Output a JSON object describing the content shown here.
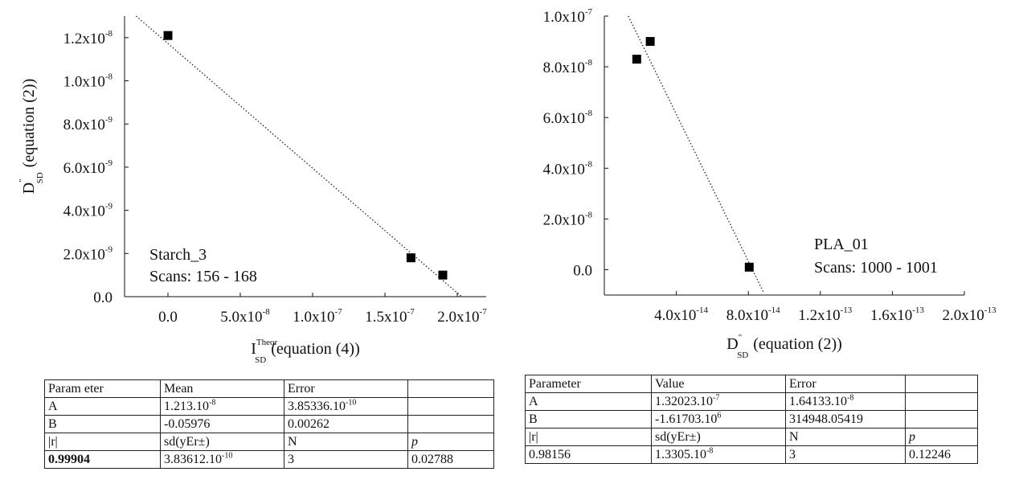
{
  "chart_data": [
    {
      "type": "scatter",
      "series": [
        {
          "x": [
            0,
            1.68e-07,
            1.9e-07
          ],
          "y": [
            1.21e-08,
            1.8e-09,
            1e-09
          ]
        }
      ],
      "fit_line": {
        "x": [
          -2.2e-08,
          2.03e-07
        ],
        "y": [
          1.3e-08,
          0
        ]
      },
      "xlim": [
        -3e-08,
        2.2e-07
      ],
      "ylim": [
        0,
        1.3e-08
      ],
      "x_ticks": [
        {
          "v": 0,
          "m": "0.0",
          "e": ""
        },
        {
          "v": 5e-08,
          "m": "5.0x10",
          "e": "-8"
        },
        {
          "v": 1e-07,
          "m": "1.0x10",
          "e": "-7"
        },
        {
          "v": 1.5e-07,
          "m": "1.5x10",
          "e": "-7"
        },
        {
          "v": 2e-07,
          "m": "2.0x10",
          "e": "-7"
        }
      ],
      "y_ticks": [
        {
          "v": 0,
          "m": "0.0",
          "e": ""
        },
        {
          "v": 2e-09,
          "m": "2.0x10",
          "e": "-9"
        },
        {
          "v": 4e-09,
          "m": "4.0x10",
          "e": "-9"
        },
        {
          "v": 6e-09,
          "m": "6.0x10",
          "e": "-9"
        },
        {
          "v": 8e-09,
          "m": "8.0x10",
          "e": "-9"
        },
        {
          "v": 1e-08,
          "m": "1.0x10",
          "e": "-8"
        },
        {
          "v": 1.2e-08,
          "m": "1.2x10",
          "e": "-8"
        }
      ],
      "xlabel": {
        "main": "I",
        "sup": "Theor",
        "sub": "SD",
        "rest": "(equation (4))"
      },
      "ylabel": {
        "main": "D",
        "sup": "\"",
        "sub": "SD",
        "rest": "(equation (2))"
      },
      "annotation": [
        "Starch_3",
        "Scans: 156 - 168"
      ]
    },
    {
      "type": "scatter",
      "series": [
        {
          "x": [
            1.8e-14,
            2.55e-14,
            8.05e-14
          ],
          "y": [
            8.3e-08,
            9e-08,
            1e-09
          ]
        }
      ],
      "fit_line": {
        "x": [
          1.33e-14,
          8.85e-14
        ],
        "y": [
          1e-07,
          -9e-09
        ]
      },
      "xlim": [
        0,
        2e-13
      ],
      "ylim": [
        -1e-08,
        1e-07
      ],
      "x_ticks": [
        {
          "v": 4e-14,
          "m": "4.0x10",
          "e": "-14"
        },
        {
          "v": 8e-14,
          "m": "8.0x10",
          "e": "-14"
        },
        {
          "v": 1.2e-13,
          "m": "1.2x10",
          "e": "-13"
        },
        {
          "v": 1.6e-13,
          "m": "1.6x10",
          "e": "-13"
        },
        {
          "v": 2e-13,
          "m": "2.0x10",
          "e": "-13"
        }
      ],
      "y_ticks": [
        {
          "v": 0,
          "m": "0.0",
          "e": ""
        },
        {
          "v": 2e-08,
          "m": "2.0x10",
          "e": "-8"
        },
        {
          "v": 4e-08,
          "m": "4.0x10",
          "e": "-8"
        },
        {
          "v": 6e-08,
          "m": "6.0x10",
          "e": "-8"
        },
        {
          "v": 8e-08,
          "m": "8.0x10",
          "e": "-8"
        },
        {
          "v": 1e-07,
          "m": "1.0x10",
          "e": "-7"
        }
      ],
      "xlabel": {
        "main": "D",
        "sup": "\"",
        "sub": "SD",
        "rest": "(equation (2))"
      },
      "annotation": [
        "PLA_01",
        "Scans: 1000 - 1001"
      ]
    }
  ],
  "tables": {
    "left": {
      "header": [
        "Param eter",
        "Mean",
        "Error",
        ""
      ],
      "rows": [
        {
          "c1": "A",
          "c2": {
            "m": "1.213.10",
            "e": "-8"
          },
          "c3": {
            "m": "3.85336.10",
            "e": "-10"
          },
          "c4": ""
        },
        {
          "c1": "B",
          "c2": {
            "m": "-0.05976",
            "e": ""
          },
          "c3": {
            "m": "0.00262",
            "e": ""
          },
          "c4": ""
        }
      ],
      "stats_header": [
        "|r|",
        "sd(yEr±)",
        "N",
        "p"
      ],
      "stats": {
        "c1": "0.99904",
        "c2": {
          "m": "3.83612.10",
          "e": "-10"
        },
        "c3": "3",
        "c4": "0.02788"
      }
    },
    "right": {
      "header": [
        "Parameter",
        "Value",
        "Error",
        ""
      ],
      "rows": [
        {
          "c1": "A",
          "c2": {
            "m": "1.32023.10",
            "e": "-7"
          },
          "c3": {
            "m": "1.64133.10",
            "e": "-8"
          },
          "c4": ""
        },
        {
          "c1": "B",
          "c2": {
            "m": "-1.61703.10",
            "e": "6"
          },
          "c3": {
            "m": "314948.05419",
            "e": ""
          },
          "c4": ""
        }
      ],
      "stats_header": [
        "|r|",
        "sd(yEr±)",
        "N",
        "p"
      ],
      "stats": {
        "c1": "0.98156",
        "c2": {
          "m": "1.3305.10",
          "e": "-8"
        },
        "c3": "3",
        "c4": "0.12246"
      }
    }
  }
}
